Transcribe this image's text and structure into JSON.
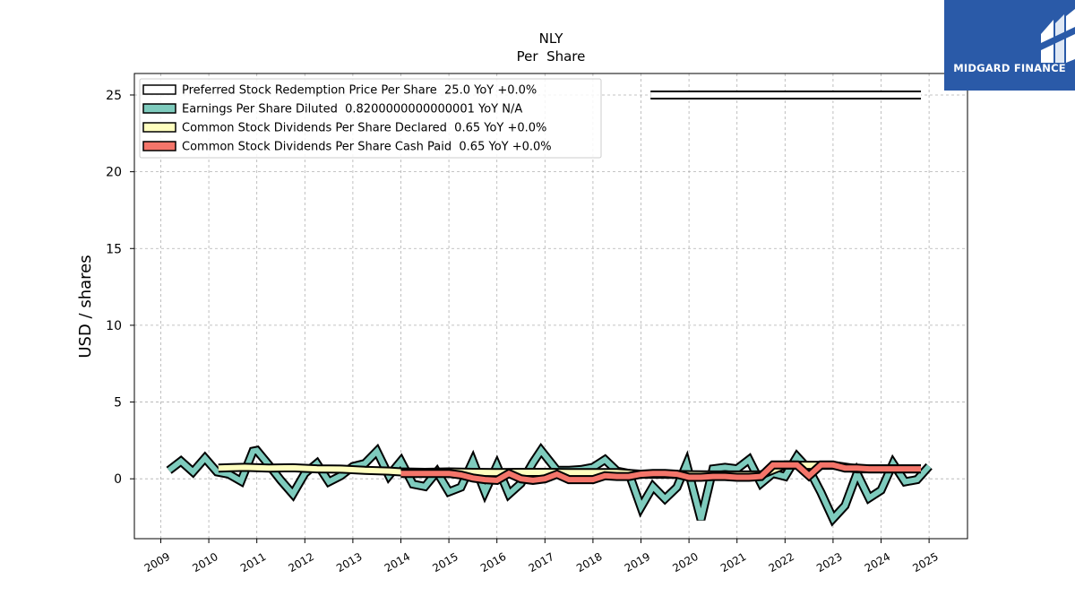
{
  "logo": {
    "text": "MIDGARD FINANCE"
  },
  "chart_data": {
    "type": "line",
    "title": "NLY",
    "subtitle": "Per  Share",
    "xlabel": "",
    "ylabel": "USD / shares",
    "xlim": [
      2008.45,
      2025.8
    ],
    "ylim": [
      -3.9,
      26.4
    ],
    "x_ticks": [
      2009,
      2010,
      2011,
      2012,
      2013,
      2014,
      2015,
      2016,
      2017,
      2018,
      2019,
      2020,
      2021,
      2022,
      2023,
      2024,
      2025
    ],
    "y_ticks": [
      0,
      5,
      10,
      15,
      20,
      25
    ],
    "grid": true,
    "legend_position": "top-left",
    "series": [
      {
        "name": "Preferred Stock Redemption Price Per Share",
        "legend_label": "Preferred Stock Redemption Price Per Share  25.0 YoY +0.0%",
        "color": "#ffffff",
        "x": [
          2019.2,
          2024.83
        ],
        "y": [
          25.0,
          25.0
        ]
      },
      {
        "name": "Earnings Per Share Diluted",
        "legend_label": "Earnings Per Share Diluted  0.8200000000000001 YoY N/A",
        "color": "#7ecbbd",
        "x": [
          2009.17,
          2009.42,
          2009.67,
          2009.92,
          2010.17,
          2010.42,
          2010.67,
          2010.92,
          2011.0,
          2011.25,
          2011.5,
          2011.75,
          2012.0,
          2012.25,
          2012.5,
          2012.75,
          2013.0,
          2013.25,
          2013.5,
          2013.75,
          2014.0,
          2014.25,
          2014.5,
          2014.75,
          2015.0,
          2015.25,
          2015.5,
          2015.75,
          2016.0,
          2016.25,
          2016.5,
          2016.75,
          2016.92,
          2017.25,
          2017.5,
          2017.75,
          2018.0,
          2018.25,
          2018.5,
          2018.75,
          2019.0,
          2019.25,
          2019.5,
          2019.75,
          2019.95,
          2020.25,
          2020.5,
          2020.75,
          2021.0,
          2021.25,
          2021.5,
          2021.75,
          2022.0,
          2022.25,
          2022.5,
          2022.75,
          2023.0,
          2023.25,
          2023.5,
          2023.75,
          2024.0,
          2024.25,
          2024.5,
          2024.75,
          2025.0
        ],
        "y": [
          0.55,
          1.15,
          0.45,
          1.35,
          0.45,
          0.3,
          -0.15,
          1.8,
          1.85,
          0.9,
          -0.1,
          -1.0,
          0.35,
          1.0,
          -0.2,
          0.2,
          0.8,
          1.0,
          1.8,
          0.2,
          1.15,
          -0.35,
          -0.5,
          0.45,
          -0.85,
          -0.55,
          1.15,
          -0.85,
          0.85,
          -1.0,
          -0.3,
          1.05,
          1.85,
          0.55,
          0.55,
          0.6,
          0.75,
          1.25,
          0.5,
          0.35,
          -1.85,
          -0.5,
          -1.3,
          -0.55,
          0.95,
          -2.65,
          0.65,
          0.75,
          0.65,
          1.25,
          -0.3,
          0.35,
          0.15,
          1.45,
          0.6,
          -0.9,
          -2.6,
          -1.75,
          0.35,
          -1.25,
          -0.75,
          1.0,
          -0.2,
          -0.05,
          0.82
        ]
      },
      {
        "name": "Common Stock Dividends Per Share Declared",
        "legend_label": "Common Stock Dividends Per Share Declared  0.65 YoY +0.0%",
        "color": "#ffffbf",
        "x": [
          2010.2,
          2010.75,
          2011.25,
          2011.75,
          2012.25,
          2012.75,
          2013.25,
          2013.75,
          2014.0,
          2014.5,
          2015.0,
          2015.5,
          2016.0,
          2016.5,
          2017.0,
          2017.5,
          2018.0,
          2018.5,
          2019.0,
          2019.5,
          2020.0,
          2020.5,
          2021.0,
          2021.5,
          2022.0,
          2022.5,
          2023.0,
          2023.5,
          2024.0,
          2024.5,
          2024.83
        ],
        "y": [
          0.7,
          0.75,
          0.7,
          0.72,
          0.65,
          0.63,
          0.55,
          0.5,
          0.45,
          0.42,
          0.45,
          0.42,
          0.4,
          0.42,
          0.42,
          0.4,
          0.4,
          0.4,
          0.3,
          0.3,
          0.27,
          0.25,
          0.25,
          0.25,
          0.9,
          0.88,
          0.88,
          0.65,
          0.65,
          0.65,
          0.65
        ]
      },
      {
        "name": "Common Stock Dividends Per Share Cash Paid",
        "legend_label": "Common Stock Dividends Per Share Cash Paid  0.65 YoY +0.0%",
        "color": "#f4756a",
        "x": [
          2014.0,
          2014.5,
          2015.0,
          2015.25,
          2015.5,
          2015.75,
          2016.0,
          2016.25,
          2016.5,
          2016.75,
          2017.0,
          2017.25,
          2017.5,
          2017.75,
          2018.0,
          2018.25,
          2018.5,
          2018.75,
          2019.0,
          2019.25,
          2019.5,
          2019.75,
          2020.0,
          2020.25,
          2020.5,
          2020.75,
          2021.0,
          2021.25,
          2021.5,
          2021.75,
          2022.0,
          2022.25,
          2022.5,
          2022.75,
          2023.0,
          2023.25,
          2023.5,
          2023.75,
          2024.0,
          2024.25,
          2024.5,
          2024.83
        ],
        "y": [
          0.35,
          0.35,
          0.35,
          0.25,
          0.05,
          -0.05,
          -0.1,
          0.35,
          0.0,
          -0.1,
          0.0,
          0.3,
          -0.05,
          -0.05,
          -0.05,
          0.2,
          0.15,
          0.15,
          0.3,
          0.35,
          0.35,
          0.3,
          0.1,
          0.1,
          0.15,
          0.15,
          0.1,
          0.1,
          0.15,
          0.9,
          0.9,
          0.9,
          0.2,
          0.9,
          0.9,
          0.7,
          0.7,
          0.65,
          0.65,
          0.65,
          0.65,
          0.65
        ]
      }
    ]
  }
}
